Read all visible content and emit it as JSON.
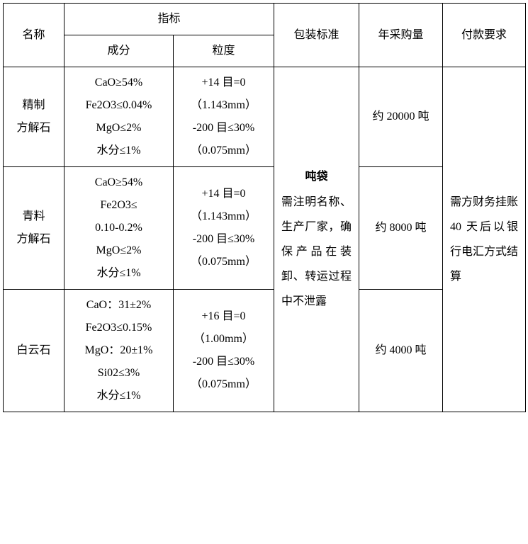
{
  "header": {
    "name": "名称",
    "indicator": "指标",
    "component": "成分",
    "grain": "粒度",
    "packing": "包装标准",
    "annual": "年采购量",
    "payment": "付款要求"
  },
  "rows": [
    {
      "name": "精制\n方解石",
      "component": "CaO≥54%\nFe2O3≤0.04%\nMgO≤2%\n水分≤1%",
      "grain": "+14 目=0\n（1.143mm）\n-200 目≤30%\n（0.075mm）",
      "annual": "约 20000 吨"
    },
    {
      "name": "青料\n方解石",
      "component": "CaO≥54%\nFe2O3≤\n0.10-0.2%\nMgO≤2%\n水分≤1%",
      "grain": "+14 目=0\n（1.143mm）\n-200 目≤30%\n（0.075mm）",
      "annual": "约 8000 吨"
    },
    {
      "name": "白云石",
      "component": "CaO：31±2%\nFe2O3≤0.15%\nMgO：20±1%\nSi02≤3%\n水分≤1%",
      "grain": "+16 目=0\n（1.00mm）\n-200 目≤30%\n（0.075mm）",
      "annual": "约 4000 吨"
    }
  ],
  "packing": {
    "title": "吨袋",
    "desc": "需注明名称、生产厂家，确保产品在装卸、转运过程中不泄露"
  },
  "payment": "需方财务挂账 40 天后以银行电汇方式结算"
}
